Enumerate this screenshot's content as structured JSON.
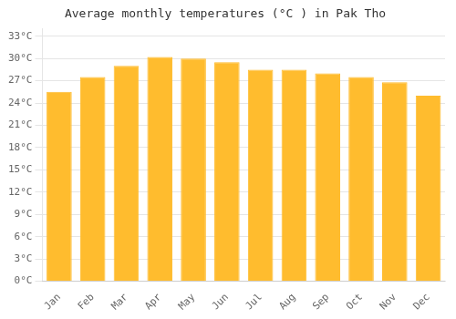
{
  "chart_data": {
    "type": "bar",
    "title": "Average monthly temperatures (°C ) in Pak Tho",
    "categories": [
      "Jan",
      "Feb",
      "Mar",
      "Apr",
      "May",
      "Jun",
      "Jul",
      "Aug",
      "Sep",
      "Oct",
      "Nov",
      "Dec"
    ],
    "values": [
      25.5,
      27.5,
      29.0,
      30.2,
      30.0,
      29.5,
      28.5,
      28.5,
      28.0,
      27.5,
      26.8,
      25.0
    ],
    "color": "#FFBC2E",
    "ylim": [
      0,
      34
    ],
    "yticks": [
      {
        "value": 0,
        "label": "0°C"
      },
      {
        "value": 3,
        "label": "3°C"
      },
      {
        "value": 6,
        "label": "6°C"
      },
      {
        "value": 9,
        "label": "9°C"
      },
      {
        "value": 12,
        "label": "12°C"
      },
      {
        "value": 15,
        "label": "15°C"
      },
      {
        "value": 18,
        "label": "18°C"
      },
      {
        "value": 21,
        "label": "21°C"
      },
      {
        "value": 24,
        "label": "24°C"
      },
      {
        "value": 27,
        "label": "27°C"
      },
      {
        "value": 30,
        "label": "30°C"
      },
      {
        "value": 33,
        "label": "33°C"
      }
    ],
    "grid": true
  }
}
